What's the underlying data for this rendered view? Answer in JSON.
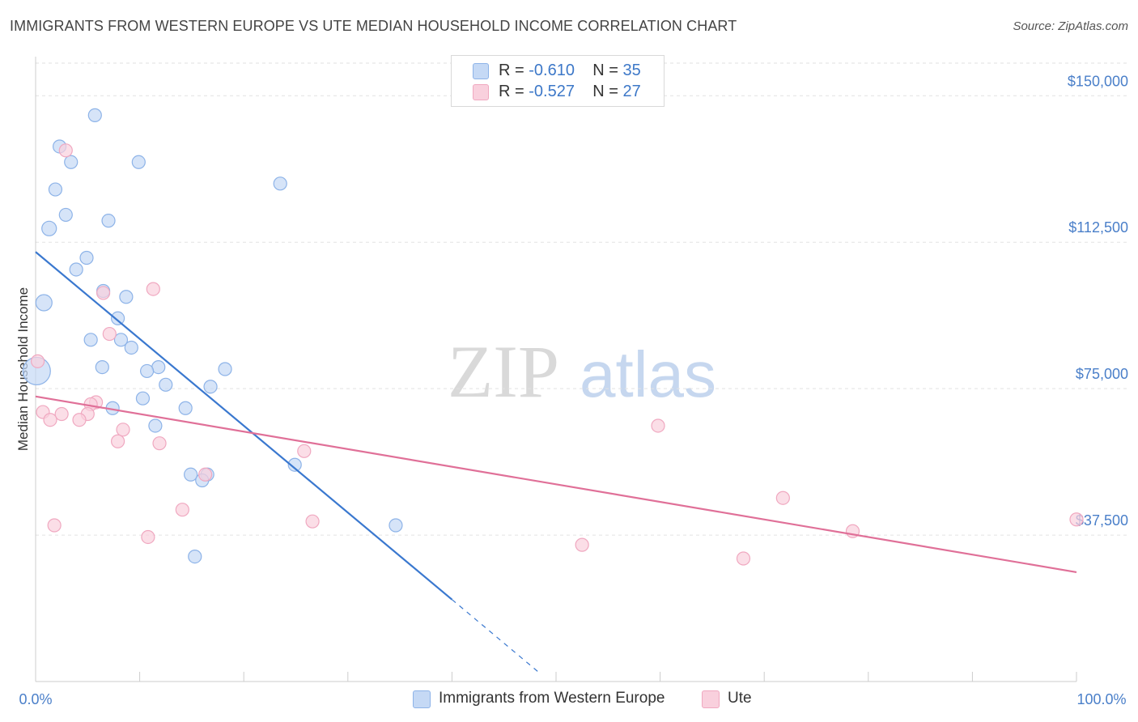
{
  "chart_data": {
    "type": "scatter",
    "title": "IMMIGRANTS FROM WESTERN EUROPE VS UTE MEDIAN HOUSEHOLD INCOME CORRELATION CHART",
    "source": "Source: ZipAtlas.com",
    "xlabel": "",
    "ylabel": "Median Household Income",
    "xlim": [
      0,
      100
    ],
    "ylim": [
      0,
      160000
    ],
    "x_tick_labels": {
      "left": "0.0%",
      "right": "100.0%"
    },
    "y_ticks": [
      {
        "value": 37500,
        "label": "$37,500"
      },
      {
        "value": 75000,
        "label": "$75,000"
      },
      {
        "value": 112500,
        "label": "$112,500"
      },
      {
        "value": 150000,
        "label": "$150,000"
      }
    ],
    "watermark": {
      "part1": "ZIP",
      "part2": "atlas"
    },
    "series": [
      {
        "name": "Immigrants from Western Europe",
        "color": "#8db3e8",
        "fill": "#c5d9f5",
        "line_color": "#3a78cf",
        "R": "-0.610",
        "N": "35",
        "trend": {
          "x0": 0,
          "y0": 110000,
          "x1": 40,
          "y1": 21000,
          "dash_x1": 48.5,
          "dash_y1": 2000
        },
        "points": [
          {
            "x": 5.7,
            "y": 145000,
            "r": 8
          },
          {
            "x": 2.3,
            "y": 137000,
            "r": 8
          },
          {
            "x": 3.4,
            "y": 133000,
            "r": 8
          },
          {
            "x": 9.9,
            "y": 133000,
            "r": 8
          },
          {
            "x": 1.9,
            "y": 126000,
            "r": 8
          },
          {
            "x": 23.5,
            "y": 127500,
            "r": 8
          },
          {
            "x": 2.9,
            "y": 119500,
            "r": 8
          },
          {
            "x": 7.0,
            "y": 118000,
            "r": 8
          },
          {
            "x": 1.3,
            "y": 116000,
            "r": 9
          },
          {
            "x": 4.9,
            "y": 108500,
            "r": 8
          },
          {
            "x": 3.9,
            "y": 105500,
            "r": 8
          },
          {
            "x": 6.5,
            "y": 100000,
            "r": 8
          },
          {
            "x": 8.7,
            "y": 98500,
            "r": 8
          },
          {
            "x": 0.8,
            "y": 97000,
            "r": 10
          },
          {
            "x": 7.9,
            "y": 93000,
            "r": 8
          },
          {
            "x": 5.3,
            "y": 87500,
            "r": 8
          },
          {
            "x": 8.2,
            "y": 87500,
            "r": 8
          },
          {
            "x": 9.2,
            "y": 85500,
            "r": 8
          },
          {
            "x": 6.4,
            "y": 80500,
            "r": 8
          },
          {
            "x": 11.8,
            "y": 80500,
            "r": 8
          },
          {
            "x": 18.2,
            "y": 80000,
            "r": 8
          },
          {
            "x": 10.7,
            "y": 79500,
            "r": 8
          },
          {
            "x": 0.1,
            "y": 79500,
            "r": 17
          },
          {
            "x": 12.5,
            "y": 76000,
            "r": 8
          },
          {
            "x": 16.8,
            "y": 75500,
            "r": 8
          },
          {
            "x": 10.3,
            "y": 72500,
            "r": 8
          },
          {
            "x": 7.4,
            "y": 70000,
            "r": 8
          },
          {
            "x": 14.4,
            "y": 70000,
            "r": 8
          },
          {
            "x": 11.5,
            "y": 65500,
            "r": 8
          },
          {
            "x": 24.9,
            "y": 55500,
            "r": 8
          },
          {
            "x": 14.9,
            "y": 53000,
            "r": 8
          },
          {
            "x": 16.5,
            "y": 53000,
            "r": 8
          },
          {
            "x": 16.0,
            "y": 51500,
            "r": 8
          },
          {
            "x": 34.6,
            "y": 40000,
            "r": 8
          },
          {
            "x": 15.3,
            "y": 32000,
            "r": 8
          }
        ]
      },
      {
        "name": "Ute",
        "color": "#f0a8c0",
        "fill": "#f9d0dd",
        "line_color": "#e07098",
        "R": "-0.527",
        "N": "27",
        "trend": {
          "x0": 0,
          "y0": 73000,
          "x1": 100,
          "y1": 28000
        },
        "points": [
          {
            "x": 2.9,
            "y": 136000,
            "r": 8
          },
          {
            "x": 11.3,
            "y": 100500,
            "r": 8
          },
          {
            "x": 6.5,
            "y": 99500,
            "r": 8
          },
          {
            "x": 7.1,
            "y": 89000,
            "r": 8
          },
          {
            "x": 0.2,
            "y": 82000,
            "r": 8
          },
          {
            "x": 5.8,
            "y": 71500,
            "r": 8
          },
          {
            "x": 5.3,
            "y": 71000,
            "r": 8
          },
          {
            "x": 0.7,
            "y": 69000,
            "r": 8
          },
          {
            "x": 2.5,
            "y": 68500,
            "r": 8
          },
          {
            "x": 5.0,
            "y": 68500,
            "r": 8
          },
          {
            "x": 1.4,
            "y": 67000,
            "r": 8
          },
          {
            "x": 4.2,
            "y": 67000,
            "r": 8
          },
          {
            "x": 59.8,
            "y": 65500,
            "r": 8
          },
          {
            "x": 8.4,
            "y": 64500,
            "r": 8
          },
          {
            "x": 7.9,
            "y": 61500,
            "r": 8
          },
          {
            "x": 11.9,
            "y": 61000,
            "r": 8
          },
          {
            "x": 25.8,
            "y": 59000,
            "r": 8
          },
          {
            "x": 16.3,
            "y": 53000,
            "r": 8
          },
          {
            "x": 71.8,
            "y": 47000,
            "r": 8
          },
          {
            "x": 14.1,
            "y": 44000,
            "r": 8
          },
          {
            "x": 100,
            "y": 41500,
            "r": 8
          },
          {
            "x": 26.6,
            "y": 41000,
            "r": 8
          },
          {
            "x": 1.8,
            "y": 40000,
            "r": 8
          },
          {
            "x": 78.5,
            "y": 38500,
            "r": 8
          },
          {
            "x": 10.8,
            "y": 37000,
            "r": 8
          },
          {
            "x": 52.5,
            "y": 35000,
            "r": 8
          },
          {
            "x": 68.0,
            "y": 31500,
            "r": 8
          }
        ]
      }
    ]
  },
  "legend": {
    "r_label": "R =",
    "n_label": "N ="
  }
}
